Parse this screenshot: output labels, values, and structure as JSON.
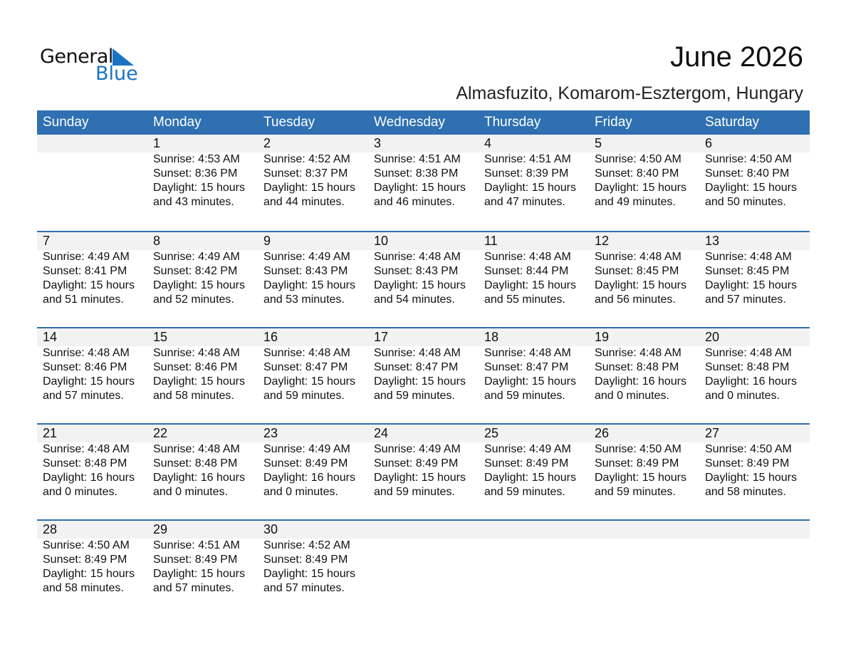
{
  "logo": {
    "line1": "General",
    "line2": "Blue"
  },
  "title": "June 2026",
  "location": "Almasfuzito, Komarom-Esztergom, Hungary",
  "weekdays": [
    "Sunday",
    "Monday",
    "Tuesday",
    "Wednesday",
    "Thursday",
    "Friday",
    "Saturday"
  ],
  "weeks": [
    [
      null,
      {
        "day": "1",
        "sunrise": "Sunrise: 4:53 AM",
        "sunset": "Sunset: 8:36 PM",
        "daylight": "Daylight: 15 hours",
        "minutes": "and 43 minutes."
      },
      {
        "day": "2",
        "sunrise": "Sunrise: 4:52 AM",
        "sunset": "Sunset: 8:37 PM",
        "daylight": "Daylight: 15 hours",
        "minutes": "and 44 minutes."
      },
      {
        "day": "3",
        "sunrise": "Sunrise: 4:51 AM",
        "sunset": "Sunset: 8:38 PM",
        "daylight": "Daylight: 15 hours",
        "minutes": "and 46 minutes."
      },
      {
        "day": "4",
        "sunrise": "Sunrise: 4:51 AM",
        "sunset": "Sunset: 8:39 PM",
        "daylight": "Daylight: 15 hours",
        "minutes": "and 47 minutes."
      },
      {
        "day": "5",
        "sunrise": "Sunrise: 4:50 AM",
        "sunset": "Sunset: 8:40 PM",
        "daylight": "Daylight: 15 hours",
        "minutes": "and 49 minutes."
      },
      {
        "day": "6",
        "sunrise": "Sunrise: 4:50 AM",
        "sunset": "Sunset: 8:40 PM",
        "daylight": "Daylight: 15 hours",
        "minutes": "and 50 minutes."
      }
    ],
    [
      {
        "day": "7",
        "sunrise": "Sunrise: 4:49 AM",
        "sunset": "Sunset: 8:41 PM",
        "daylight": "Daylight: 15 hours",
        "minutes": "and 51 minutes."
      },
      {
        "day": "8",
        "sunrise": "Sunrise: 4:49 AM",
        "sunset": "Sunset: 8:42 PM",
        "daylight": "Daylight: 15 hours",
        "minutes": "and 52 minutes."
      },
      {
        "day": "9",
        "sunrise": "Sunrise: 4:49 AM",
        "sunset": "Sunset: 8:43 PM",
        "daylight": "Daylight: 15 hours",
        "minutes": "and 53 minutes."
      },
      {
        "day": "10",
        "sunrise": "Sunrise: 4:48 AM",
        "sunset": "Sunset: 8:43 PM",
        "daylight": "Daylight: 15 hours",
        "minutes": "and 54 minutes."
      },
      {
        "day": "11",
        "sunrise": "Sunrise: 4:48 AM",
        "sunset": "Sunset: 8:44 PM",
        "daylight": "Daylight: 15 hours",
        "minutes": "and 55 minutes."
      },
      {
        "day": "12",
        "sunrise": "Sunrise: 4:48 AM",
        "sunset": "Sunset: 8:45 PM",
        "daylight": "Daylight: 15 hours",
        "minutes": "and 56 minutes."
      },
      {
        "day": "13",
        "sunrise": "Sunrise: 4:48 AM",
        "sunset": "Sunset: 8:45 PM",
        "daylight": "Daylight: 15 hours",
        "minutes": "and 57 minutes."
      }
    ],
    [
      {
        "day": "14",
        "sunrise": "Sunrise: 4:48 AM",
        "sunset": "Sunset: 8:46 PM",
        "daylight": "Daylight: 15 hours",
        "minutes": "and 57 minutes."
      },
      {
        "day": "15",
        "sunrise": "Sunrise: 4:48 AM",
        "sunset": "Sunset: 8:46 PM",
        "daylight": "Daylight: 15 hours",
        "minutes": "and 58 minutes."
      },
      {
        "day": "16",
        "sunrise": "Sunrise: 4:48 AM",
        "sunset": "Sunset: 8:47 PM",
        "daylight": "Daylight: 15 hours",
        "minutes": "and 59 minutes."
      },
      {
        "day": "17",
        "sunrise": "Sunrise: 4:48 AM",
        "sunset": "Sunset: 8:47 PM",
        "daylight": "Daylight: 15 hours",
        "minutes": "and 59 minutes."
      },
      {
        "day": "18",
        "sunrise": "Sunrise: 4:48 AM",
        "sunset": "Sunset: 8:47 PM",
        "daylight": "Daylight: 15 hours",
        "minutes": "and 59 minutes."
      },
      {
        "day": "19",
        "sunrise": "Sunrise: 4:48 AM",
        "sunset": "Sunset: 8:48 PM",
        "daylight": "Daylight: 16 hours",
        "minutes": "and 0 minutes."
      },
      {
        "day": "20",
        "sunrise": "Sunrise: 4:48 AM",
        "sunset": "Sunset: 8:48 PM",
        "daylight": "Daylight: 16 hours",
        "minutes": "and 0 minutes."
      }
    ],
    [
      {
        "day": "21",
        "sunrise": "Sunrise: 4:48 AM",
        "sunset": "Sunset: 8:48 PM",
        "daylight": "Daylight: 16 hours",
        "minutes": "and 0 minutes."
      },
      {
        "day": "22",
        "sunrise": "Sunrise: 4:48 AM",
        "sunset": "Sunset: 8:48 PM",
        "daylight": "Daylight: 16 hours",
        "minutes": "and 0 minutes."
      },
      {
        "day": "23",
        "sunrise": "Sunrise: 4:49 AM",
        "sunset": "Sunset: 8:49 PM",
        "daylight": "Daylight: 16 hours",
        "minutes": "and 0 minutes."
      },
      {
        "day": "24",
        "sunrise": "Sunrise: 4:49 AM",
        "sunset": "Sunset: 8:49 PM",
        "daylight": "Daylight: 15 hours",
        "minutes": "and 59 minutes."
      },
      {
        "day": "25",
        "sunrise": "Sunrise: 4:49 AM",
        "sunset": "Sunset: 8:49 PM",
        "daylight": "Daylight: 15 hours",
        "minutes": "and 59 minutes."
      },
      {
        "day": "26",
        "sunrise": "Sunrise: 4:50 AM",
        "sunset": "Sunset: 8:49 PM",
        "daylight": "Daylight: 15 hours",
        "minutes": "and 59 minutes."
      },
      {
        "day": "27",
        "sunrise": "Sunrise: 4:50 AM",
        "sunset": "Sunset: 8:49 PM",
        "daylight": "Daylight: 15 hours",
        "minutes": "and 58 minutes."
      }
    ],
    [
      {
        "day": "28",
        "sunrise": "Sunrise: 4:50 AM",
        "sunset": "Sunset: 8:49 PM",
        "daylight": "Daylight: 15 hours",
        "minutes": "and 58 minutes."
      },
      {
        "day": "29",
        "sunrise": "Sunrise: 4:51 AM",
        "sunset": "Sunset: 8:49 PM",
        "daylight": "Daylight: 15 hours",
        "minutes": "and 57 minutes."
      },
      {
        "day": "30",
        "sunrise": "Sunrise: 4:52 AM",
        "sunset": "Sunset: 8:49 PM",
        "daylight": "Daylight: 15 hours",
        "minutes": "and 57 minutes."
      },
      null,
      null,
      null,
      null
    ]
  ],
  "colors": {
    "header": "#2e70b1",
    "strip": "#f2f2f2",
    "logo_blue": "#1a73c2"
  }
}
